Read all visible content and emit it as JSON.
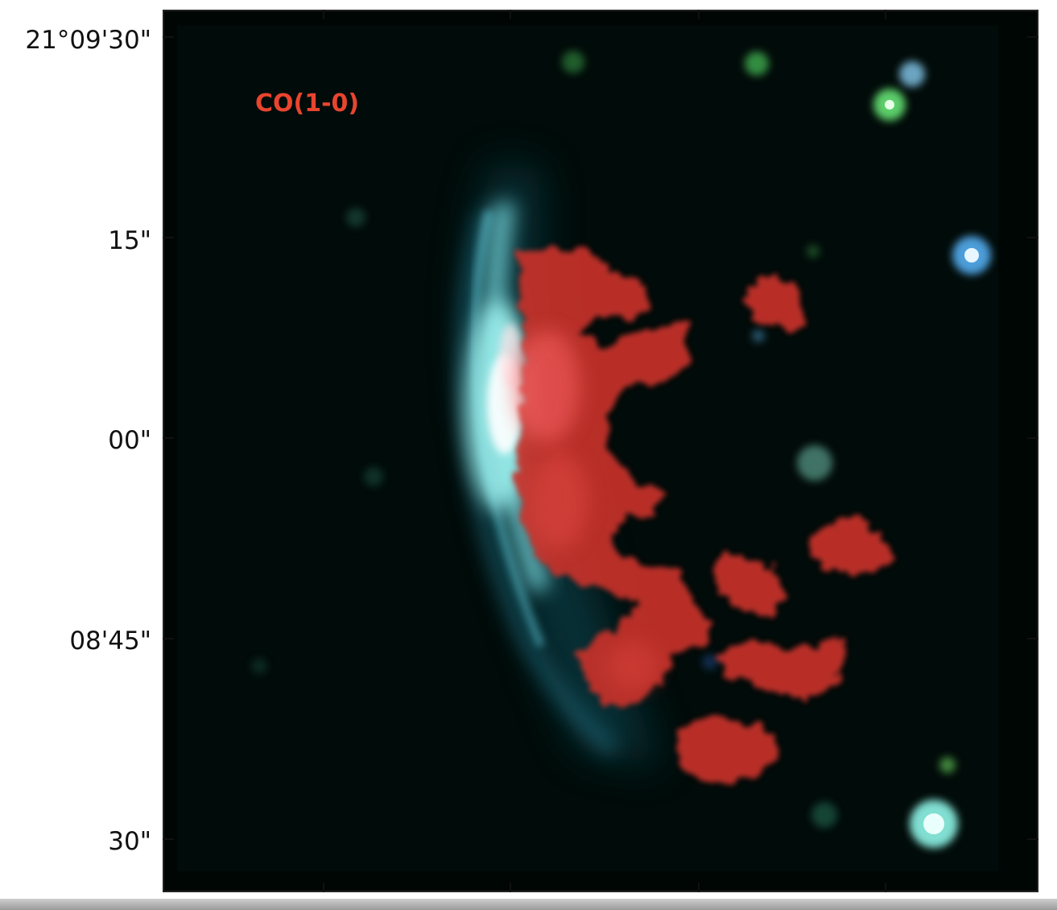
{
  "overlay": {
    "label": "CO(1-0)",
    "color": "#e8452f"
  },
  "axis": {
    "dec_tick_labels": [
      "21°09'30\"",
      "15\"",
      "00\"",
      "08'45\"",
      "30\""
    ]
  },
  "colors": {
    "background": "#000604",
    "bow_shock": "#7fe6ec",
    "co_emission": "#d8362c",
    "star_green": "#6cf07a",
    "star_blue": "#7cc8ff",
    "star_cyan": "#b8fff2"
  }
}
